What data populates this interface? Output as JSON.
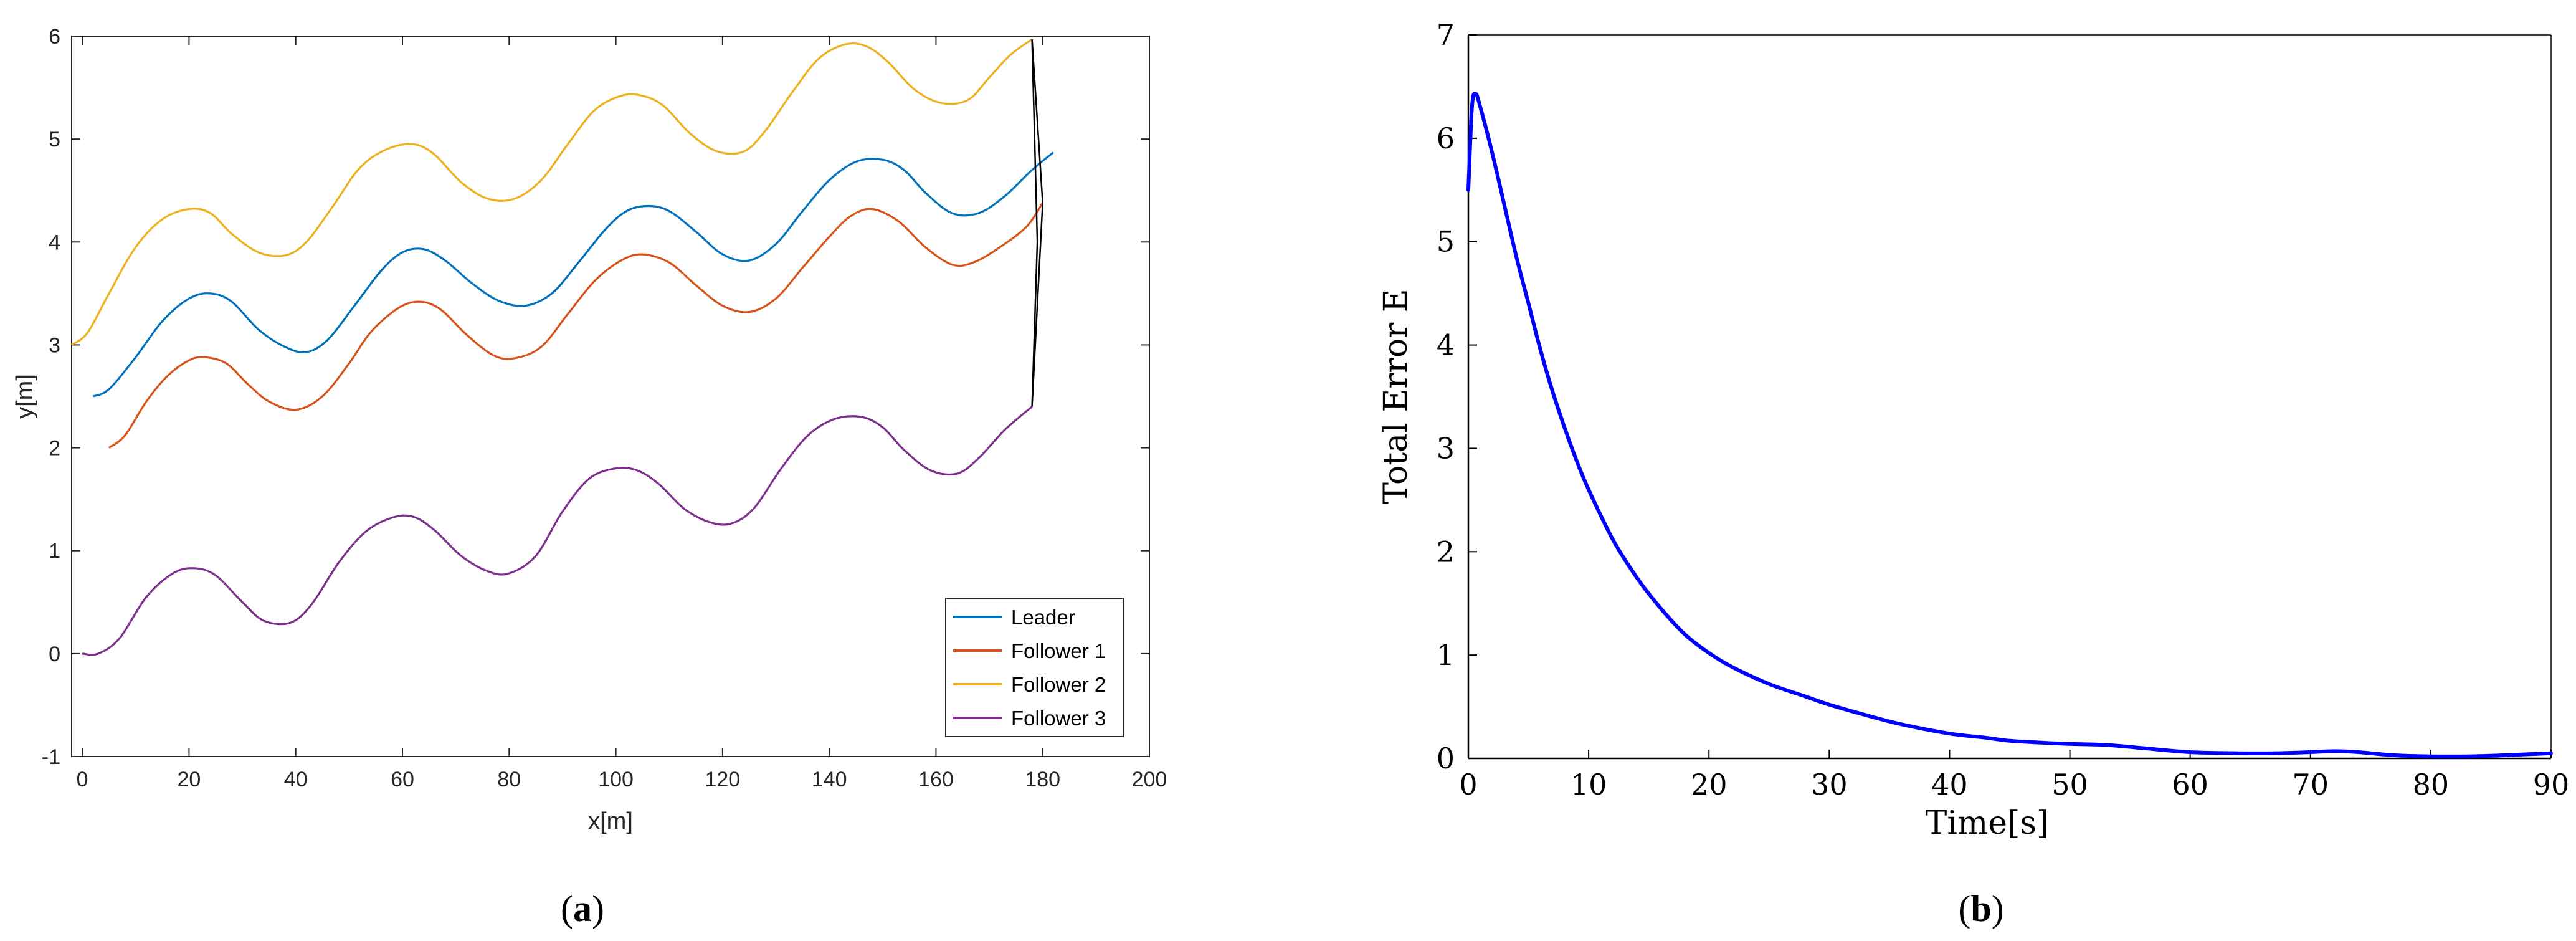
{
  "chart_data": [
    {
      "id": "a",
      "type": "line",
      "caption": "a",
      "xlabel": "x[m]",
      "ylabel": "y[m]",
      "xlim": [
        -2,
        200
      ],
      "ylim": [
        -1,
        6
      ],
      "xticks": [
        "0",
        "20",
        "40",
        "60",
        "80",
        "100",
        "120",
        "140",
        "160",
        "180",
        "200"
      ],
      "yticks": [
        "-1",
        "0",
        "1",
        "2",
        "3",
        "4",
        "5",
        "6"
      ],
      "grid": false,
      "legend_position": "bottom-right",
      "series": [
        {
          "name": "Leader",
          "color": "#0072BD",
          "x": [
            2,
            5,
            10,
            15,
            20,
            24,
            28,
            33,
            38,
            42,
            46,
            51,
            56,
            60,
            64,
            68,
            73,
            78,
            83,
            88,
            93,
            98,
            102,
            106,
            110,
            115,
            120,
            125,
            130,
            135,
            140,
            145,
            150,
            154,
            158,
            163,
            168,
            173,
            178,
            182
          ],
          "y": [
            2.5,
            2.57,
            2.88,
            3.23,
            3.45,
            3.5,
            3.42,
            3.15,
            2.98,
            2.93,
            3.05,
            3.38,
            3.72,
            3.9,
            3.93,
            3.82,
            3.6,
            3.43,
            3.38,
            3.5,
            3.8,
            4.12,
            4.3,
            4.35,
            4.3,
            4.1,
            3.88,
            3.82,
            3.98,
            4.3,
            4.6,
            4.78,
            4.8,
            4.7,
            4.48,
            4.28,
            4.28,
            4.45,
            4.7,
            4.87
          ]
        },
        {
          "name": "Follower 1",
          "color": "#D95319",
          "x": [
            5,
            8,
            12,
            16,
            20,
            23,
            27,
            31,
            35,
            40,
            45,
            50,
            54,
            59,
            63,
            67,
            72,
            77,
            81,
            86,
            91,
            96,
            101,
            105,
            110,
            115,
            120,
            125,
            130,
            135,
            140,
            144,
            148,
            153,
            158,
            163,
            167,
            172,
            177,
            180
          ],
          "y": [
            2.0,
            2.12,
            2.45,
            2.7,
            2.85,
            2.88,
            2.82,
            2.62,
            2.45,
            2.37,
            2.5,
            2.82,
            3.12,
            3.35,
            3.42,
            3.35,
            3.1,
            2.9,
            2.87,
            2.98,
            3.3,
            3.62,
            3.82,
            3.88,
            3.8,
            3.58,
            3.38,
            3.32,
            3.45,
            3.75,
            4.05,
            4.25,
            4.32,
            4.2,
            3.95,
            3.78,
            3.8,
            3.95,
            4.15,
            4.38
          ]
        },
        {
          "name": "Follower 2",
          "color": "#EDB120",
          "x": [
            -2,
            1,
            5,
            10,
            15,
            20,
            24,
            28,
            33,
            38,
            42,
            47,
            52,
            57,
            62,
            66,
            71,
            76,
            81,
            86,
            91,
            96,
            101,
            105,
            109,
            114,
            119,
            124,
            128,
            133,
            138,
            143,
            147,
            151,
            156,
            161,
            166,
            170,
            174,
            178
          ],
          "y": [
            3.0,
            3.12,
            3.5,
            3.95,
            4.22,
            4.32,
            4.28,
            4.08,
            3.9,
            3.87,
            4.0,
            4.35,
            4.72,
            4.9,
            4.95,
            4.85,
            4.58,
            4.42,
            4.42,
            4.6,
            4.95,
            5.28,
            5.42,
            5.42,
            5.32,
            5.05,
            4.88,
            4.88,
            5.08,
            5.45,
            5.78,
            5.92,
            5.9,
            5.75,
            5.48,
            5.35,
            5.38,
            5.6,
            5.82,
            5.97
          ]
        },
        {
          "name": "Follower 3",
          "color": "#7E2F8E",
          "x": [
            0,
            3,
            7,
            12,
            17,
            21,
            25,
            30,
            34,
            39,
            43,
            48,
            53,
            58,
            62,
            66,
            71,
            76,
            80,
            85,
            90,
            95,
            100,
            104,
            108,
            113,
            118,
            122,
            126,
            131,
            136,
            141,
            146,
            150,
            154,
            159,
            164,
            168,
            173,
            178
          ],
          "y": [
            0.0,
            0.0,
            0.15,
            0.55,
            0.78,
            0.83,
            0.76,
            0.5,
            0.32,
            0.3,
            0.48,
            0.88,
            1.18,
            1.32,
            1.33,
            1.2,
            0.95,
            0.8,
            0.78,
            0.95,
            1.38,
            1.7,
            1.8,
            1.78,
            1.65,
            1.4,
            1.27,
            1.27,
            1.42,
            1.8,
            2.12,
            2.28,
            2.3,
            2.2,
            1.98,
            1.78,
            1.75,
            1.9,
            2.18,
            2.4
          ]
        }
      ],
      "formation_lines": {
        "color": "#000000",
        "points": [
          [
            178,
            5.97
          ],
          [
            180,
            4.38
          ],
          [
            178,
            2.4
          ],
          [
            179,
            4.0
          ],
          [
            178,
            5.97
          ]
        ]
      }
    },
    {
      "id": "b",
      "type": "line",
      "caption": "b",
      "xlabel": "Time[s]",
      "ylabel": "Total Error E",
      "xlim": [
        0,
        90
      ],
      "ylim": [
        0,
        7
      ],
      "xticks": [
        "0",
        "10",
        "20",
        "30",
        "40",
        "50",
        "60",
        "70",
        "80",
        "90"
      ],
      "yticks": [
        "0",
        "1",
        "2",
        "3",
        "4",
        "5",
        "6",
        "7"
      ],
      "grid": false,
      "series": [
        {
          "name": "Total Error E",
          "color": "#0000FF",
          "x": [
            0,
            0.3,
            0.6,
            1,
            2,
            3,
            4,
            5,
            6,
            7,
            8,
            9,
            10,
            12,
            14,
            16,
            18,
            20,
            22,
            25,
            28,
            30,
            33,
            36,
            40,
            43,
            45,
            48,
            50,
            53,
            56,
            60,
            64,
            67,
            70,
            72,
            74,
            77,
            80,
            83,
            86,
            90
          ],
          "y": [
            5.5,
            6.3,
            6.43,
            6.3,
            5.85,
            5.35,
            4.85,
            4.4,
            3.95,
            3.55,
            3.2,
            2.88,
            2.6,
            2.12,
            1.75,
            1.45,
            1.2,
            1.02,
            0.88,
            0.72,
            0.6,
            0.52,
            0.42,
            0.33,
            0.24,
            0.2,
            0.17,
            0.15,
            0.14,
            0.13,
            0.1,
            0.06,
            0.05,
            0.05,
            0.06,
            0.07,
            0.06,
            0.03,
            0.02,
            0.02,
            0.03,
            0.05
          ]
        }
      ]
    }
  ]
}
